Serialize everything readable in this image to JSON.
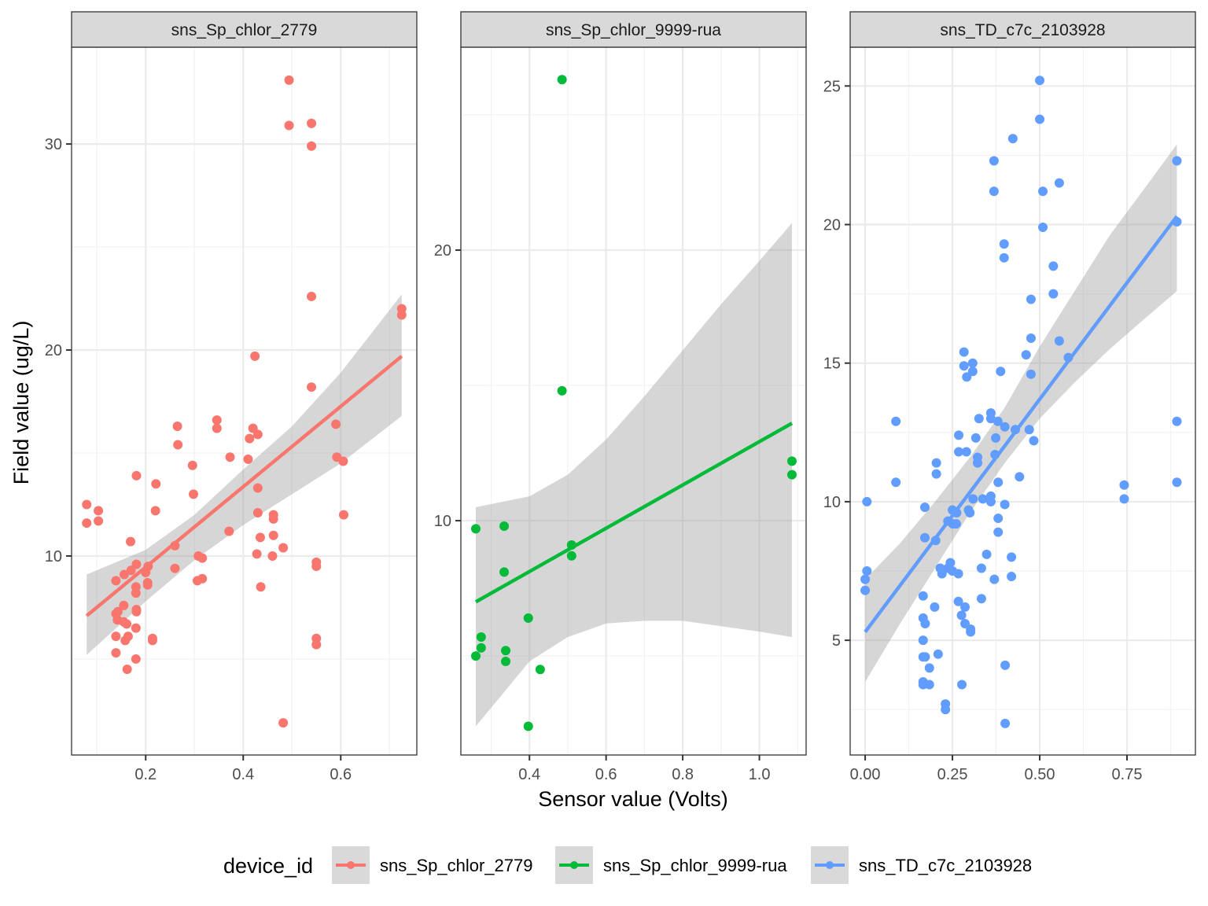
{
  "chart_data": {
    "type": "scatter",
    "title": "",
    "xlabel": "Sensor value (Volts)",
    "ylabel": "Field value (ug/L)",
    "grid": true,
    "legend": {
      "title": "device_id",
      "position": "bottom",
      "entries": [
        {
          "label": "sns_Sp_chlor_2779",
          "color": "#F8766D"
        },
        {
          "label": "sns_Sp_chlor_9999-rua",
          "color": "#00BA38"
        },
        {
          "label": "sns_TD_c7c_2103928",
          "color": "#619CFF"
        }
      ]
    },
    "facets": [
      {
        "name": "sns_Sp_chlor_2779",
        "color": "#F8766D",
        "xlim": [
          0.048,
          0.756
        ],
        "ylim": [
          0.34,
          34.7
        ],
        "xticks": [
          0.2,
          0.4,
          0.6
        ],
        "xtick_labels": [
          "0.2",
          "0.4",
          "0.6"
        ],
        "xminor": [
          0.1,
          0.3,
          0.5,
          0.7
        ],
        "yticks": [
          10,
          20,
          30
        ],
        "ytick_labels": [
          "10",
          "20",
          "30"
        ],
        "yminor": [
          5,
          15,
          25
        ],
        "fit": {
          "x": [
            0.079,
            0.725
          ],
          "y": [
            7.1,
            19.7
          ]
        },
        "ci": {
          "x": [
            0.079,
            0.2,
            0.3,
            0.4,
            0.5,
            0.6,
            0.725
          ],
          "lower": [
            5.2,
            7.8,
            9.8,
            11.5,
            13.0,
            14.5,
            16.8
          ],
          "upper": [
            9.1,
            10.3,
            12.0,
            14.2,
            16.3,
            18.9,
            22.7
          ]
        },
        "points": [
          [
            0.494,
            33.1
          ],
          [
            0.494,
            30.9
          ],
          [
            0.54,
            31.0
          ],
          [
            0.54,
            29.9
          ],
          [
            0.54,
            22.6
          ],
          [
            0.725,
            22.0
          ],
          [
            0.725,
            21.7
          ],
          [
            0.424,
            19.7
          ],
          [
            0.54,
            18.2
          ],
          [
            0.59,
            16.4
          ],
          [
            0.265,
            16.3
          ],
          [
            0.346,
            16.6
          ],
          [
            0.346,
            16.2
          ],
          [
            0.42,
            16.2
          ],
          [
            0.43,
            15.9
          ],
          [
            0.413,
            15.7
          ],
          [
            0.266,
            15.4
          ],
          [
            0.373,
            14.8
          ],
          [
            0.41,
            14.7
          ],
          [
            0.592,
            14.8
          ],
          [
            0.605,
            14.6
          ],
          [
            0.296,
            14.4
          ],
          [
            0.181,
            13.9
          ],
          [
            0.221,
            13.5
          ],
          [
            0.43,
            13.3
          ],
          [
            0.298,
            13.0
          ],
          [
            0.079,
            12.5
          ],
          [
            0.103,
            12.2
          ],
          [
            0.22,
            12.2
          ],
          [
            0.43,
            12.1
          ],
          [
            0.462,
            12.0
          ],
          [
            0.462,
            11.8
          ],
          [
            0.606,
            12.0
          ],
          [
            0.079,
            11.6
          ],
          [
            0.103,
            11.7
          ],
          [
            0.371,
            11.2
          ],
          [
            0.435,
            10.9
          ],
          [
            0.462,
            11.0
          ],
          [
            0.169,
            10.7
          ],
          [
            0.26,
            10.5
          ],
          [
            0.482,
            10.4
          ],
          [
            0.428,
            10.1
          ],
          [
            0.46,
            10.0
          ],
          [
            0.308,
            10.0
          ],
          [
            0.316,
            9.9
          ],
          [
            0.55,
            9.7
          ],
          [
            0.55,
            9.5
          ],
          [
            0.181,
            9.6
          ],
          [
            0.17,
            9.3
          ],
          [
            0.156,
            9.1
          ],
          [
            0.205,
            9.5
          ],
          [
            0.2,
            9.2
          ],
          [
            0.26,
            9.4
          ],
          [
            0.139,
            8.8
          ],
          [
            0.306,
            8.8
          ],
          [
            0.316,
            8.9
          ],
          [
            0.18,
            8.5
          ],
          [
            0.18,
            8.2
          ],
          [
            0.204,
            8.7
          ],
          [
            0.204,
            8.6
          ],
          [
            0.436,
            8.5
          ],
          [
            0.143,
            7.3
          ],
          [
            0.139,
            7.2
          ],
          [
            0.142,
            6.9
          ],
          [
            0.155,
            7.6
          ],
          [
            0.181,
            7.4
          ],
          [
            0.181,
            7.3
          ],
          [
            0.155,
            6.8
          ],
          [
            0.161,
            6.7
          ],
          [
            0.18,
            6.5
          ],
          [
            0.139,
            6.1
          ],
          [
            0.214,
            6.0
          ],
          [
            0.214,
            5.9
          ],
          [
            0.164,
            6.1
          ],
          [
            0.158,
            5.9
          ],
          [
            0.55,
            6.0
          ],
          [
            0.55,
            5.7
          ],
          [
            0.139,
            5.3
          ],
          [
            0.18,
            5.0
          ],
          [
            0.162,
            4.5
          ],
          [
            0.482,
            1.9
          ]
        ]
      },
      {
        "name": "sns_Sp_chlor_9999-rua",
        "color": "#00BA38",
        "xlim": [
          0.221,
          1.122
        ],
        "ylim": [
          1.34,
          27.5
        ],
        "xticks": [
          0.4,
          0.6,
          0.8,
          1.0
        ],
        "xtick_labels": [
          "0.4",
          "0.6",
          "0.8",
          "1.0"
        ],
        "xminor": [
          0.3,
          0.5,
          0.7,
          0.9,
          1.1
        ],
        "yticks": [
          10,
          20
        ],
        "ytick_labels": [
          "10",
          "20"
        ],
        "yminor": [
          5,
          15,
          25
        ],
        "fit": {
          "x": [
            0.26,
            1.085
          ],
          "y": [
            7.0,
            13.6
          ]
        },
        "ci": {
          "x": [
            0.26,
            0.4,
            0.5,
            0.6,
            0.7,
            0.8,
            0.9,
            1.0,
            1.085
          ],
          "lower": [
            2.4,
            4.8,
            5.7,
            6.2,
            6.3,
            6.3,
            6.1,
            5.9,
            5.7
          ],
          "upper": [
            10.5,
            10.9,
            11.7,
            13.0,
            14.6,
            16.3,
            18.0,
            19.6,
            21.0
          ]
        },
        "points": [
          [
            0.485,
            26.3
          ],
          [
            0.485,
            14.8
          ],
          [
            1.085,
            12.2
          ],
          [
            1.085,
            11.7
          ],
          [
            0.26,
            9.7
          ],
          [
            0.334,
            9.8
          ],
          [
            0.51,
            9.1
          ],
          [
            0.51,
            8.7
          ],
          [
            0.334,
            8.1
          ],
          [
            0.397,
            6.4
          ],
          [
            0.274,
            5.7
          ],
          [
            0.274,
            5.3
          ],
          [
            0.26,
            5.0
          ],
          [
            0.338,
            5.2
          ],
          [
            0.338,
            4.8
          ],
          [
            0.428,
            4.5
          ],
          [
            0.397,
            2.4
          ]
        ]
      },
      {
        "name": "sns_TD_c7c_2103928",
        "color": "#619CFF",
        "xlim": [
          -0.043,
          0.946
        ],
        "ylim": [
          0.86,
          26.4
        ],
        "xticks": [
          0.0,
          0.25,
          0.5,
          0.75
        ],
        "xtick_labels": [
          "0.00",
          "0.25",
          "0.50",
          "0.75"
        ],
        "xminor": [
          0.125,
          0.375,
          0.625,
          0.875
        ],
        "yticks": [
          5,
          10,
          15,
          20,
          25
        ],
        "ytick_labels": [
          "5",
          "10",
          "15",
          "20",
          "25"
        ],
        "yminor": [
          2.5,
          7.5,
          12.5,
          17.5,
          22.5
        ],
        "fit": {
          "x": [
            0.0,
            0.893
          ],
          "y": [
            5.3,
            20.3
          ]
        },
        "ci": {
          "x": [
            0.0,
            0.1,
            0.2,
            0.3,
            0.4,
            0.5,
            0.6,
            0.7,
            0.8,
            0.893
          ],
          "lower": [
            3.5,
            5.6,
            7.6,
            9.6,
            11.4,
            13.0,
            14.3,
            15.5,
            16.6,
            17.6
          ],
          "upper": [
            7.2,
            8.5,
            10.0,
            11.6,
            13.4,
            15.6,
            17.6,
            19.6,
            21.3,
            22.9
          ]
        },
        "points": [
          [
            0.5,
            25.2
          ],
          [
            0.5,
            23.8
          ],
          [
            0.423,
            23.1
          ],
          [
            0.369,
            22.3
          ],
          [
            0.893,
            22.3
          ],
          [
            0.556,
            21.5
          ],
          [
            0.369,
            21.2
          ],
          [
            0.509,
            21.2
          ],
          [
            0.893,
            20.1
          ],
          [
            0.509,
            19.9
          ],
          [
            0.398,
            19.3
          ],
          [
            0.398,
            18.8
          ],
          [
            0.539,
            18.5
          ],
          [
            0.539,
            17.5
          ],
          [
            0.475,
            17.3
          ],
          [
            0.475,
            15.9
          ],
          [
            0.556,
            15.8
          ],
          [
            0.582,
            15.2
          ],
          [
            0.461,
            15.3
          ],
          [
            0.283,
            15.4
          ],
          [
            0.283,
            14.9
          ],
          [
            0.308,
            15.0
          ],
          [
            0.308,
            14.7
          ],
          [
            0.388,
            14.7
          ],
          [
            0.475,
            14.6
          ],
          [
            0.291,
            14.5
          ],
          [
            0.088,
            12.9
          ],
          [
            0.893,
            12.9
          ],
          [
            0.36,
            13.2
          ],
          [
            0.36,
            13.0
          ],
          [
            0.326,
            13.0
          ],
          [
            0.38,
            12.9
          ],
          [
            0.4,
            12.7
          ],
          [
            0.43,
            12.6
          ],
          [
            0.47,
            12.6
          ],
          [
            0.374,
            12.3
          ],
          [
            0.268,
            12.4
          ],
          [
            0.317,
            12.3
          ],
          [
            0.483,
            12.2
          ],
          [
            0.268,
            11.8
          ],
          [
            0.29,
            11.8
          ],
          [
            0.372,
            11.7
          ],
          [
            0.322,
            11.6
          ],
          [
            0.322,
            11.4
          ],
          [
            0.204,
            11.4
          ],
          [
            0.204,
            11.0
          ],
          [
            0.442,
            10.9
          ],
          [
            0.381,
            10.7
          ],
          [
            0.088,
            10.7
          ],
          [
            0.742,
            10.6
          ],
          [
            0.893,
            10.7
          ],
          [
            0.742,
            10.1
          ],
          [
            0.005,
            10.0
          ],
          [
            0.36,
            10.2
          ],
          [
            0.36,
            10.0
          ],
          [
            0.309,
            10.1
          ],
          [
            0.337,
            10.1
          ],
          [
            0.4,
            9.9
          ],
          [
            0.171,
            9.8
          ],
          [
            0.296,
            9.7
          ],
          [
            0.25,
            9.7
          ],
          [
            0.3,
            9.6
          ],
          [
            0.262,
            9.6
          ],
          [
            0.381,
            9.4
          ],
          [
            0.237,
            9.3
          ],
          [
            0.251,
            9.2
          ],
          [
            0.261,
            9.2
          ],
          [
            0.381,
            8.9
          ],
          [
            0.171,
            8.7
          ],
          [
            0.202,
            8.6
          ],
          [
            0.348,
            8.1
          ],
          [
            0.419,
            8.0
          ],
          [
            0.244,
            7.8
          ],
          [
            0.237,
            7.6
          ],
          [
            0.333,
            7.6
          ],
          [
            0.005,
            7.5
          ],
          [
            0.0,
            7.2
          ],
          [
            0.25,
            7.5
          ],
          [
            0.215,
            7.6
          ],
          [
            0.22,
            7.4
          ],
          [
            0.267,
            7.4
          ],
          [
            0.419,
            7.3
          ],
          [
            0.37,
            7.2
          ],
          [
            0.0,
            6.8
          ],
          [
            0.166,
            6.6
          ],
          [
            0.333,
            6.5
          ],
          [
            0.267,
            6.4
          ],
          [
            0.286,
            6.2
          ],
          [
            0.199,
            6.2
          ],
          [
            0.166,
            5.8
          ],
          [
            0.276,
            5.9
          ],
          [
            0.172,
            5.6
          ],
          [
            0.286,
            5.6
          ],
          [
            0.302,
            5.4
          ],
          [
            0.302,
            5.3
          ],
          [
            0.166,
            5.0
          ],
          [
            0.166,
            4.4
          ],
          [
            0.172,
            4.4
          ],
          [
            0.209,
            4.5
          ],
          [
            0.184,
            4.0
          ],
          [
            0.401,
            4.1
          ],
          [
            0.166,
            3.5
          ],
          [
            0.166,
            3.4
          ],
          [
            0.184,
            3.4
          ],
          [
            0.277,
            3.4
          ],
          [
            0.23,
            2.7
          ],
          [
            0.23,
            2.5
          ],
          [
            0.401,
            2.0
          ]
        ]
      }
    ]
  }
}
